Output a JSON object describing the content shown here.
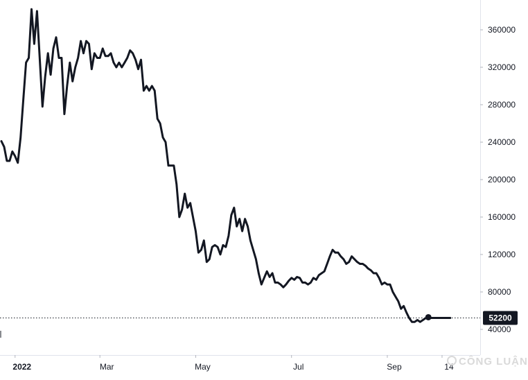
{
  "chart_data": {
    "type": "line",
    "title": "",
    "xlabel": "",
    "ylabel": "",
    "ylim": [
      25000,
      390000
    ],
    "grid": false,
    "legend": "none",
    "y_ticks": [
      40000,
      80000,
      120000,
      160000,
      200000,
      240000,
      280000,
      320000,
      360000
    ],
    "y_tick_labels": [
      "40000",
      "80000",
      "120000",
      "160000",
      "200000",
      "240000",
      "280000",
      "320000",
      "360000"
    ],
    "x_ticks": [
      {
        "label": "2022",
        "t": 5,
        "bold": true
      },
      {
        "label": "Mar",
        "t": 36
      },
      {
        "label": "May",
        "t": 71
      },
      {
        "label": "Jul",
        "t": 106
      },
      {
        "label": "Sep",
        "t": 141
      },
      {
        "label": "14",
        "t": 161
      }
    ],
    "last_value": 52200,
    "last_value_label": "52200",
    "series": [
      {
        "color": "#131722",
        "x": [
          0,
          1,
          2,
          3,
          4,
          5,
          6,
          7,
          8,
          9,
          10,
          11,
          12,
          13,
          14,
          15,
          16,
          17,
          18,
          19,
          20,
          21,
          22,
          23,
          24,
          25,
          26,
          27,
          28,
          29,
          30,
          31,
          32,
          33,
          34,
          35,
          36,
          37,
          38,
          39,
          40,
          41,
          42,
          43,
          44,
          45,
          46,
          47,
          48,
          49,
          50,
          51,
          52,
          53,
          54,
          55,
          56,
          57,
          58,
          59,
          60,
          61,
          62,
          63,
          64,
          65,
          66,
          67,
          68,
          69,
          70,
          71,
          72,
          73,
          74,
          75,
          76,
          77,
          78,
          79,
          80,
          81,
          82,
          83,
          84,
          85,
          86,
          87,
          88,
          89,
          90,
          91,
          92,
          93,
          94,
          95,
          96,
          97,
          98,
          99,
          100,
          101,
          102,
          103,
          104,
          105,
          106,
          107,
          108,
          109,
          110,
          111,
          112,
          113,
          114,
          115,
          116,
          117,
          118,
          119,
          120,
          121,
          122,
          123,
          124,
          125,
          126,
          127,
          128,
          129,
          130,
          131,
          132,
          133,
          134,
          135,
          136,
          137,
          138,
          139,
          140,
          141,
          142,
          143,
          144,
          145,
          146,
          147,
          148,
          149,
          150,
          151,
          152,
          153,
          154,
          155,
          156,
          157,
          158,
          159,
          160,
          161,
          162,
          163,
          164
        ],
        "values": [
          241000,
          235000,
          220000,
          220000,
          230000,
          225000,
          218000,
          245000,
          285000,
          325000,
          330000,
          382000,
          345000,
          380000,
          330000,
          278000,
          310000,
          335000,
          312000,
          340000,
          352000,
          330000,
          330000,
          270000,
          300000,
          325000,
          305000,
          320000,
          330000,
          348000,
          335000,
          348000,
          345000,
          318000,
          335000,
          330000,
          330000,
          340000,
          332000,
          332000,
          335000,
          325000,
          320000,
          325000,
          320000,
          325000,
          330000,
          338000,
          335000,
          328000,
          318000,
          328000,
          295000,
          300000,
          295000,
          300000,
          295000,
          265000,
          260000,
          245000,
          240000,
          215000,
          215000,
          215000,
          195000,
          160000,
          168000,
          185000,
          170000,
          175000,
          160000,
          145000,
          122000,
          125000,
          135000,
          112000,
          115000,
          128000,
          130000,
          128000,
          120000,
          130000,
          128000,
          140000,
          162000,
          170000,
          150000,
          158000,
          145000,
          158000,
          150000,
          135000,
          125000,
          115000,
          100000,
          88000,
          95000,
          102000,
          96000,
          100000,
          90000,
          90000,
          88000,
          85000,
          88000,
          92000,
          95000,
          93000,
          96000,
          95000,
          90000,
          90000,
          88000,
          90000,
          95000,
          93000,
          98000,
          100000,
          102000,
          110000,
          118000,
          125000,
          122000,
          122000,
          118000,
          115000,
          110000,
          112000,
          118000,
          115000,
          112000,
          110000,
          110000,
          108000,
          105000,
          103000,
          100000,
          100000,
          95000,
          88000,
          90000,
          88000,
          88000,
          80000,
          75000,
          70000,
          62000,
          65000,
          58000,
          52000,
          48000,
          48000,
          50000,
          48000,
          50000,
          52000,
          53000,
          52200,
          52200,
          52200,
          52200,
          52200,
          52200,
          52200,
          52200
        ]
      }
    ]
  },
  "price_axis": {
    "background": "#ffffff"
  },
  "badge": {
    "background": "#131722",
    "text_color": "#ffffff"
  },
  "watermark": {
    "text": "CÔNG LUẬN"
  }
}
